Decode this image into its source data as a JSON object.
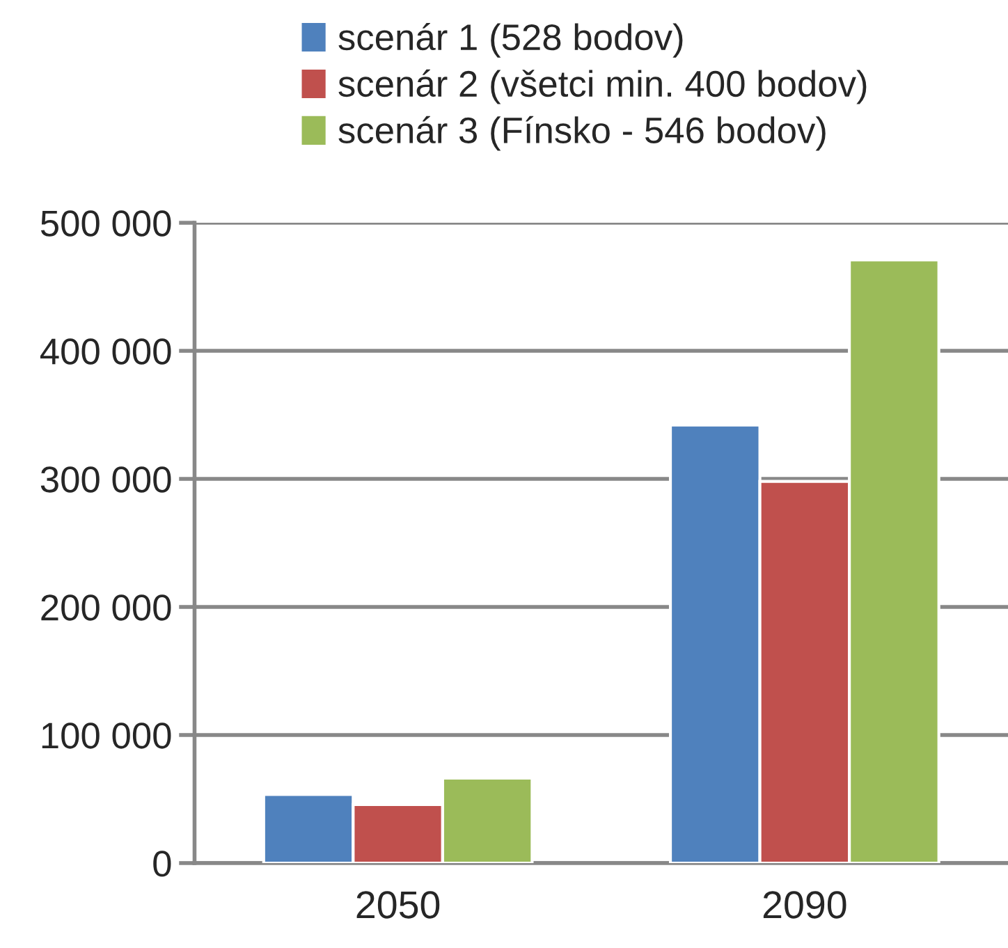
{
  "chart_data": {
    "type": "bar",
    "categories": [
      "2050",
      "2090"
    ],
    "series": [
      {
        "name": "scenár 1 (528 bodov)",
        "color": "#4f81bd",
        "values": [
          53600,
          342000
        ]
      },
      {
        "name": "scenár 2 (všetci min. 400 bodov)",
        "color": "#c0504d",
        "values": [
          45700,
          298000
        ]
      },
      {
        "name": "scenár 3 (Fínsko - 546 bodov)",
        "color": "#9bbb59",
        "values": [
          66300,
          471000
        ]
      }
    ],
    "ylim": [
      0,
      500000
    ],
    "yticks": [
      {
        "value": 0,
        "label": "0"
      },
      {
        "value": 100000,
        "label": "100 000"
      },
      {
        "value": 200000,
        "label": "200 000"
      },
      {
        "value": 300000,
        "label": "300 000"
      },
      {
        "value": 400000,
        "label": "400 000"
      },
      {
        "value": 500000,
        "label": "500 000"
      }
    ],
    "grid": "y",
    "legend": "top"
  }
}
